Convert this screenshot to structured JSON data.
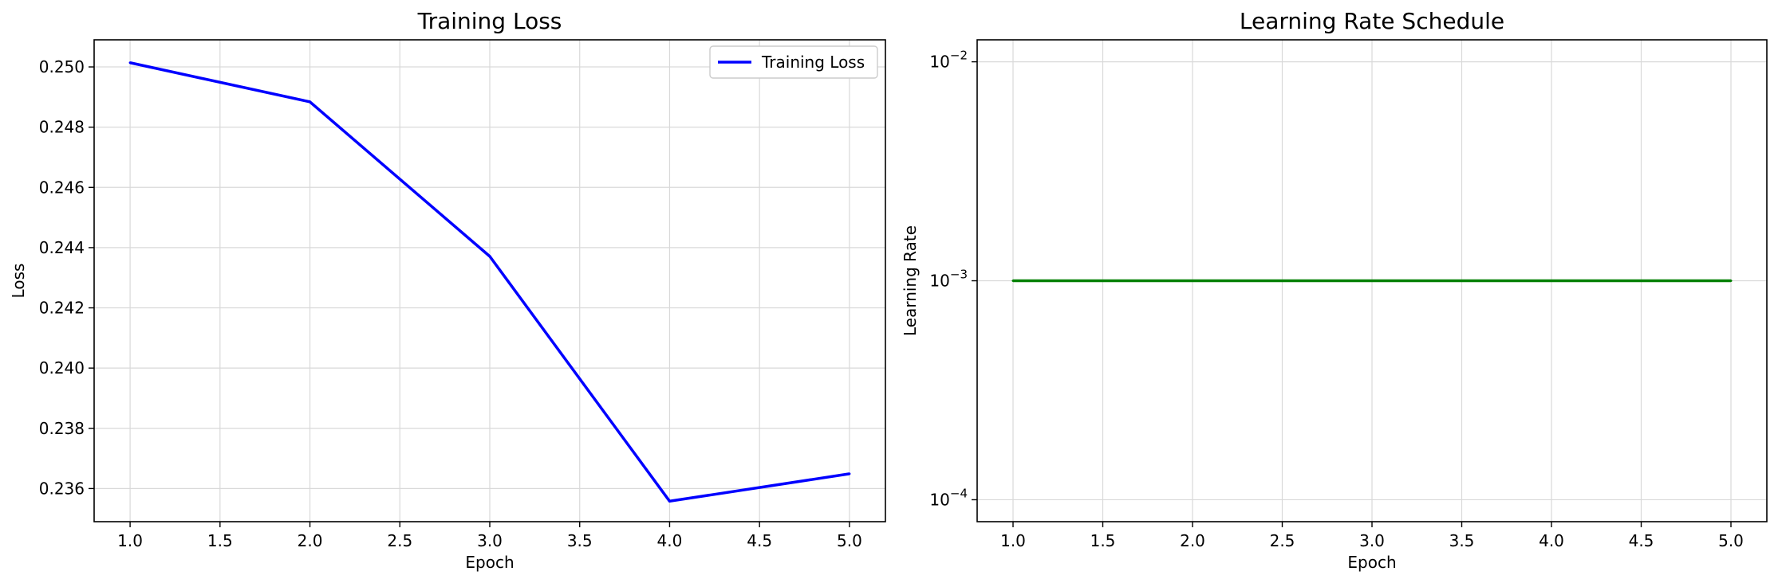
{
  "chart_data": [
    {
      "type": "line",
      "title": "Training Loss",
      "xlabel": "Epoch",
      "ylabel": "Loss",
      "x": [
        1,
        2,
        3,
        4,
        5
      ],
      "series": [
        {
          "name": "Training Loss",
          "color": "#0000ff",
          "values": [
            0.25014,
            0.24884,
            0.24371,
            0.23558,
            0.23649
          ]
        }
      ],
      "xlim": [
        0.8,
        5.2
      ],
      "ylim": [
        0.2349,
        0.2509
      ],
      "xticks": [
        1.0,
        1.5,
        2.0,
        2.5,
        3.0,
        3.5,
        4.0,
        4.5,
        5.0
      ],
      "xtick_labels": [
        "1.0",
        "1.5",
        "2.0",
        "2.5",
        "3.0",
        "3.5",
        "4.0",
        "4.5",
        "5.0"
      ],
      "yticks": [
        0.236,
        0.238,
        0.24,
        0.242,
        0.244,
        0.246,
        0.248,
        0.25
      ],
      "ytick_labels": [
        "0.236",
        "0.238",
        "0.240",
        "0.242",
        "0.244",
        "0.246",
        "0.248",
        "0.250"
      ],
      "grid": true,
      "legend": "top-right"
    },
    {
      "type": "line",
      "title": "Learning Rate Schedule",
      "xlabel": "Epoch",
      "ylabel": "Learning Rate",
      "yscale": "log",
      "x": [
        1,
        2,
        3,
        4,
        5
      ],
      "series": [
        {
          "color": "#008000",
          "values": [
            0.001,
            0.001,
            0.001,
            0.001,
            0.001
          ]
        }
      ],
      "xlim": [
        0.8,
        5.2
      ],
      "ylim": [
        7.94e-05,
        0.0126
      ],
      "xticks": [
        1.0,
        1.5,
        2.0,
        2.5,
        3.0,
        3.5,
        4.0,
        4.5,
        5.0
      ],
      "xtick_labels": [
        "1.0",
        "1.5",
        "2.0",
        "2.5",
        "3.0",
        "3.5",
        "4.0",
        "4.5",
        "5.0"
      ],
      "yticks": [
        0.0001,
        0.001,
        0.01
      ],
      "ytick_labels": [
        {
          "base": "10",
          "exp": "−4"
        },
        {
          "base": "10",
          "exp": "−3"
        },
        {
          "base": "10",
          "exp": "−2"
        }
      ],
      "grid": true
    }
  ]
}
